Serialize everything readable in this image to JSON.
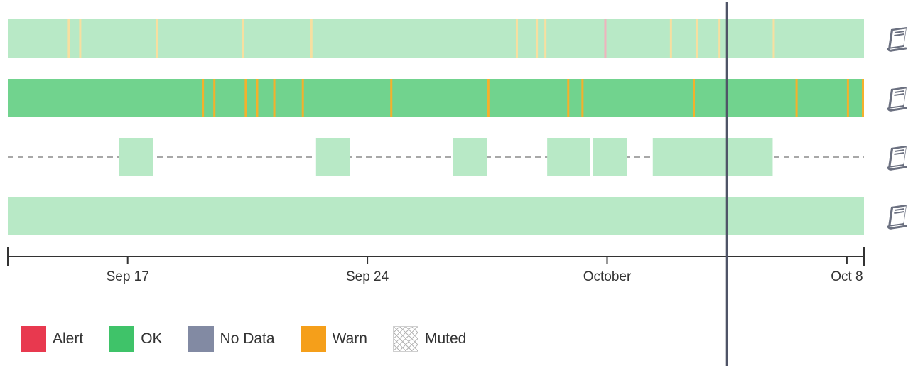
{
  "chart_data": {
    "type": "timeline",
    "x_range": [
      "2023-09-13T12:00",
      "2023-10-08T12:00"
    ],
    "x_ticks": [
      {
        "label": "Sep 17",
        "date": "2023-09-17"
      },
      {
        "label": "Sep 24",
        "date": "2023-09-24"
      },
      {
        "label": "October",
        "date": "2023-10-01"
      },
      {
        "label": "Oct 8",
        "date": "2023-10-08"
      }
    ],
    "current_time": "2023-10-04T12:00",
    "rows": [
      {
        "style": "full",
        "base_status": "ok_light",
        "events": [
          {
            "time": "2023-09-15T06:00",
            "status": "warn_light"
          },
          {
            "time": "2023-09-15T14:00",
            "status": "warn_light"
          },
          {
            "time": "2023-09-17T20:00",
            "status": "warn_light"
          },
          {
            "time": "2023-09-20T08:00",
            "status": "warn_light"
          },
          {
            "time": "2023-09-22T08:00",
            "status": "warn_light"
          },
          {
            "time": "2023-09-28T08:00",
            "status": "warn_light"
          },
          {
            "time": "2023-09-28T22:00",
            "status": "warn_light"
          },
          {
            "time": "2023-09-29T04:00",
            "status": "warn_light"
          },
          {
            "time": "2023-09-30T22:00",
            "status": "alert_light"
          },
          {
            "time": "2023-10-02T20:00",
            "status": "warn_light"
          },
          {
            "time": "2023-10-03T14:00",
            "status": "warn_light"
          },
          {
            "time": "2023-10-04T06:00",
            "status": "warn_light"
          },
          {
            "time": "2023-10-05T20:00",
            "status": "warn_light"
          }
        ]
      },
      {
        "style": "full",
        "base_status": "ok",
        "events": [
          {
            "time": "2023-09-19T04:00",
            "status": "warn"
          },
          {
            "time": "2023-09-19T12:00",
            "status": "warn"
          },
          {
            "time": "2023-09-20T10:00",
            "status": "warn"
          },
          {
            "time": "2023-09-20T18:00",
            "status": "warn"
          },
          {
            "time": "2023-09-21T06:00",
            "status": "warn"
          },
          {
            "time": "2023-09-22T02:00",
            "status": "warn"
          },
          {
            "time": "2023-09-24T16:00",
            "status": "warn"
          },
          {
            "time": "2023-09-27T12:00",
            "status": "warn"
          },
          {
            "time": "2023-09-29T20:00",
            "status": "warn"
          },
          {
            "time": "2023-09-30T06:00",
            "status": "warn"
          },
          {
            "time": "2023-10-03T12:00",
            "status": "warn"
          },
          {
            "time": "2023-10-06T12:00",
            "status": "warn"
          },
          {
            "time": "2023-10-08T00:00",
            "status": "warn"
          },
          {
            "time": "2023-10-08T22:00",
            "status": "warn"
          }
        ]
      },
      {
        "style": "sparse",
        "base_status": "no_data",
        "blocks": [
          {
            "start": "2023-09-16T18:00",
            "end": "2023-09-17T18:00",
            "status": "ok_light"
          },
          {
            "start": "2023-09-22T12:00",
            "end": "2023-09-23T12:00",
            "status": "ok_light"
          },
          {
            "start": "2023-09-26T12:00",
            "end": "2023-09-27T12:00",
            "status": "ok_light"
          },
          {
            "start": "2023-09-29T06:00",
            "end": "2023-09-30T12:00",
            "status": "ok_light"
          },
          {
            "start": "2023-09-30T14:00",
            "end": "2023-10-01T14:00",
            "status": "ok_light"
          },
          {
            "start": "2023-10-02T08:00",
            "end": "2023-10-05T20:00",
            "status": "ok_light"
          }
        ]
      },
      {
        "style": "full",
        "base_status": "ok_light",
        "events": []
      }
    ],
    "colors": {
      "ok": "#71d38e",
      "ok_light": "#b8e9c6",
      "warn": "#f4b02c",
      "warn_light": "#f7dfa0",
      "alert_light": "#efb3bd",
      "no_data_line": "#a8a8a8",
      "axis": "#333333",
      "now_line": "#4f5467"
    },
    "legend": [
      {
        "label": "Alert",
        "color": "#e8394f"
      },
      {
        "label": "OK",
        "color": "#3fc369"
      },
      {
        "label": "No Data",
        "color": "#828aa3"
      },
      {
        "label": "Warn",
        "color": "#f59f1a"
      },
      {
        "label": "Muted",
        "color": "hatched"
      }
    ]
  },
  "row_actions": [
    {
      "icon": "notebook-icon"
    },
    {
      "icon": "notebook-icon"
    },
    {
      "icon": "notebook-icon"
    },
    {
      "icon": "notebook-icon"
    }
  ]
}
